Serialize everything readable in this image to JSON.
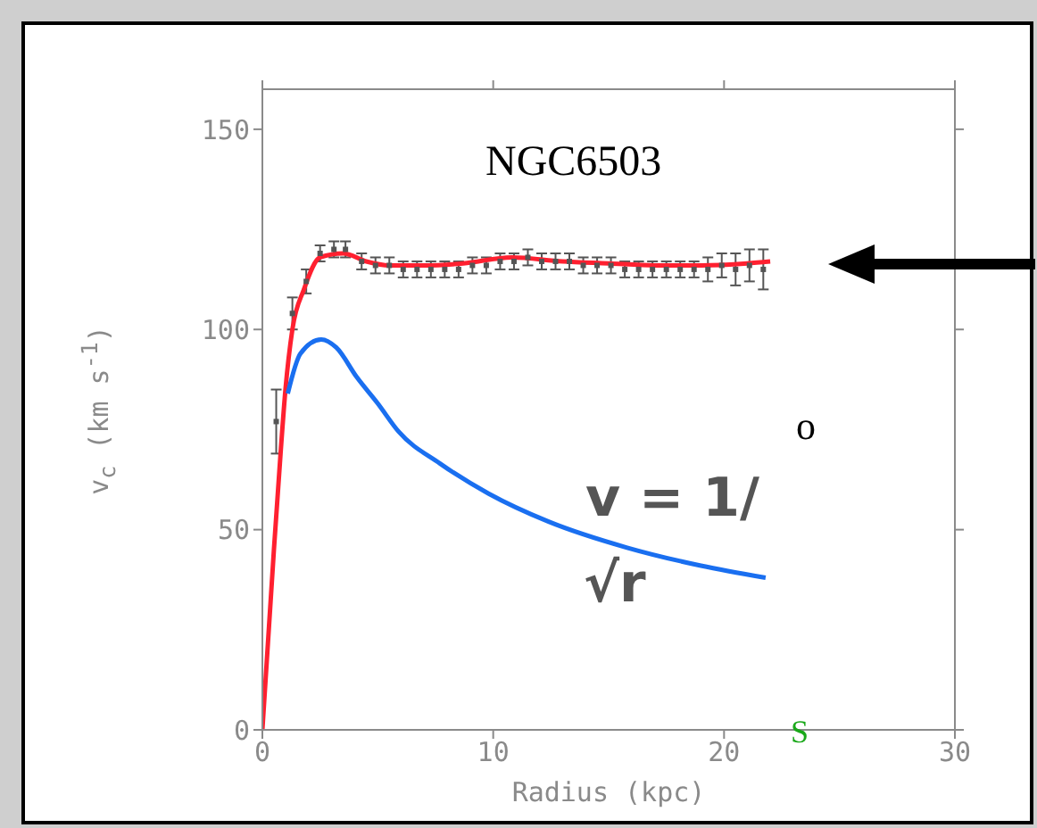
{
  "chart_data": {
    "type": "line",
    "xlabel": "Radius (kpc)",
    "ylabel": "v$_{c}$ (km s$^{-1}$)",
    "xlim": [
      0,
      30
    ],
    "xticks": [
      0,
      10,
      20,
      30
    ],
    "ylim": [
      0,
      160
    ],
    "yticks": [
      0,
      50,
      100,
      150
    ],
    "grid": false,
    "annotations": [
      "NGC6503",
      "v = 1/",
      "√r",
      "o",
      "S"
    ],
    "series": [
      {
        "type": "scatter",
        "color": "#555555",
        "marker": "square",
        "x": [
          0.6,
          1.3,
          1.9,
          2.5,
          3.1,
          3.6,
          4.3,
          4.9,
          5.5,
          6.1,
          6.7,
          7.3,
          7.9,
          8.5,
          9.1,
          9.7,
          10.3,
          10.9,
          11.5,
          12.1,
          12.7,
          13.3,
          13.9,
          14.5,
          15.1,
          15.7,
          16.3,
          16.9,
          17.5,
          18.1,
          18.7,
          19.3,
          19.9,
          20.5,
          21.1,
          21.7
        ],
        "values": [
          77,
          104,
          112,
          119,
          120,
          120,
          117,
          116,
          116,
          115,
          115,
          115,
          115,
          115,
          116,
          116,
          117,
          117,
          118,
          117,
          117,
          117,
          116,
          116,
          116,
          115,
          115,
          115,
          115,
          115,
          115,
          115,
          116,
          115,
          116,
          115
        ],
        "errors": [
          8,
          4,
          3,
          2,
          2,
          2,
          2,
          2,
          2,
          2,
          2,
          2,
          2,
          2,
          2,
          2,
          2,
          2,
          2,
          2,
          2,
          2,
          2,
          2,
          2,
          2,
          2,
          2,
          2,
          2,
          2,
          3,
          3,
          4,
          4,
          5
        ]
      },
      {
        "color": "#ff2030",
        "marker": "none",
        "x": [
          0,
          0.5,
          0.8,
          1.0,
          1.3,
          1.8,
          2.5,
          3.5,
          4.5,
          5.5,
          7,
          8.7,
          10.8,
          13,
          15,
          17,
          19,
          21,
          22
        ],
        "values": [
          0,
          45,
          70,
          85,
          100,
          110,
          118,
          119,
          117,
          116,
          116,
          116.5,
          118,
          117,
          116.5,
          116,
          116,
          116.5,
          117
        ]
      },
      {
        "color": "#1a6ff0",
        "marker": "none",
        "x": [
          1.1,
          1.65,
          2.55,
          3.2,
          4.1,
          5.0,
          5.9,
          7.7,
          9.8,
          12.4,
          15.8,
          19.0,
          21.8
        ],
        "values": [
          84,
          94,
          97.5,
          95.5,
          88,
          81.5,
          74.5,
          66.5,
          59,
          52,
          45.5,
          41,
          38
        ]
      }
    ]
  }
}
